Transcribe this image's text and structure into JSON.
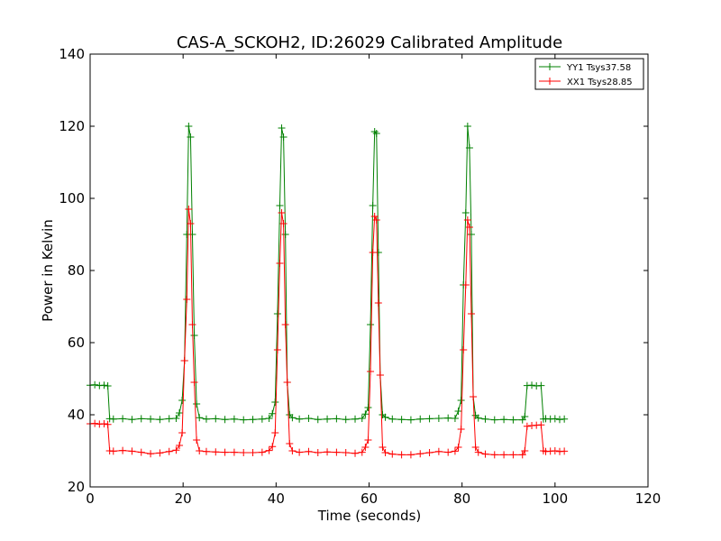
{
  "chart_data": {
    "type": "line",
    "title": "CAS-A_SCKOH2, ID:26029 Calibrated Amplitude",
    "xlabel": "Time (seconds)",
    "ylabel": "Power in Kelvin",
    "xlim": [
      0,
      120
    ],
    "ylim": [
      20,
      140
    ],
    "xticks": [
      0,
      20,
      40,
      60,
      80,
      100,
      120
    ],
    "yticks": [
      20,
      40,
      60,
      80,
      100,
      120,
      140
    ],
    "grid": false,
    "legend_position": "top-right",
    "marker": "plus",
    "series": [
      {
        "name": "YY1 Tsys37.58",
        "color": "#008000",
        "x": [
          0,
          1,
          2,
          3,
          3.8,
          4.2,
          5,
          7,
          9,
          11,
          13,
          15,
          17,
          18.5,
          19.2,
          19.8,
          20.3,
          20.8,
          21.2,
          21.6,
          22.0,
          22.4,
          22.9,
          23.5,
          25,
          27,
          29,
          31,
          33,
          35,
          37,
          38.5,
          39.2,
          39.8,
          40.3,
          40.8,
          41.2,
          41.6,
          42.0,
          42.4,
          42.9,
          43.5,
          45,
          47,
          49,
          51,
          53,
          55,
          57,
          58.5,
          59.2,
          59.8,
          60.3,
          60.8,
          61.2,
          61.6,
          62.0,
          62.4,
          62.9,
          63.5,
          65,
          67,
          69,
          71,
          73,
          75,
          77,
          78.5,
          79.2,
          79.8,
          80.3,
          80.8,
          81.2,
          81.6,
          82.0,
          82.4,
          82.9,
          83.5,
          85,
          87,
          89,
          91,
          93,
          93.5,
          94,
          95,
          96,
          97,
          97.5,
          98,
          99,
          100,
          101,
          102
        ],
        "y": [
          48.2,
          48.3,
          48.1,
          48.2,
          48.0,
          38.9,
          38.8,
          38.9,
          38.7,
          38.9,
          38.8,
          38.7,
          38.9,
          39.0,
          40.5,
          44,
          55,
          90,
          120,
          117,
          90,
          62,
          43,
          39.2,
          38.8,
          38.9,
          38.7,
          38.8,
          38.6,
          38.7,
          38.8,
          39.0,
          40.3,
          43.5,
          68,
          98,
          119.5,
          117,
          90,
          49,
          40,
          39.2,
          38.8,
          39.0,
          38.7,
          38.8,
          38.9,
          38.7,
          38.8,
          39.0,
          40.2,
          42,
          65,
          98,
          118.5,
          118,
          85,
          51,
          40,
          39.3,
          38.8,
          38.7,
          38.6,
          38.8,
          38.9,
          39.0,
          39.1,
          39.0,
          41,
          44,
          76,
          96,
          120,
          114,
          90,
          45,
          39.8,
          39.1,
          38.8,
          38.6,
          38.7,
          38.6,
          38.6,
          39.5,
          48.1,
          48.2,
          48.0,
          48.1,
          38.8,
          38.9,
          38.8,
          38.9,
          38.7,
          38.8
        ]
      },
      {
        "name": "XX1 Tsys28.85",
        "color": "#ff0000",
        "x": [
          0,
          1,
          2,
          3,
          3.8,
          4.2,
          5,
          7,
          9,
          11,
          13,
          15,
          17,
          18.5,
          19.2,
          19.8,
          20.3,
          20.8,
          21.2,
          21.6,
          22.0,
          22.4,
          22.9,
          23.5,
          25,
          27,
          29,
          31,
          33,
          35,
          37,
          38.5,
          39.2,
          39.8,
          40.3,
          40.8,
          41.2,
          41.6,
          42.0,
          42.4,
          42.9,
          43.5,
          45,
          47,
          49,
          51,
          53,
          55,
          57,
          58.5,
          59.2,
          59.8,
          60.3,
          60.8,
          61.2,
          61.6,
          62.0,
          62.4,
          62.9,
          63.5,
          65,
          67,
          69,
          71,
          73,
          75,
          77,
          78.5,
          79.2,
          79.8,
          80.3,
          80.8,
          81.2,
          81.6,
          82.0,
          82.4,
          82.9,
          83.5,
          85,
          87,
          89,
          91,
          93,
          93.5,
          94,
          95,
          96,
          97,
          97.5,
          98,
          99,
          100,
          101,
          102
        ],
        "y": [
          37.5,
          37.6,
          37.4,
          37.5,
          37.3,
          30.0,
          29.9,
          30.1,
          29.9,
          29.6,
          29.2,
          29.4,
          29.8,
          30.2,
          31.5,
          35,
          55,
          72,
          97,
          93,
          65,
          49,
          33,
          30.0,
          29.8,
          29.7,
          29.6,
          29.6,
          29.5,
          29.5,
          29.6,
          30.1,
          31.2,
          35,
          58,
          82,
          96,
          93,
          65,
          49,
          32,
          30.0,
          29.6,
          29.8,
          29.5,
          29.7,
          29.6,
          29.5,
          29.3,
          29.6,
          31,
          33,
          52,
          85,
          95,
          94,
          71,
          51,
          31,
          29.5,
          29.1,
          28.9,
          28.9,
          29.2,
          29.5,
          29.8,
          29.6,
          29.9,
          31,
          36,
          58,
          76,
          94,
          92,
          68,
          45,
          31,
          29.6,
          29.1,
          28.9,
          28.9,
          28.9,
          28.9,
          30,
          36.8,
          37.0,
          37.1,
          37.2,
          30.0,
          29.8,
          29.9,
          30.0,
          29.8,
          29.9
        ]
      }
    ]
  }
}
